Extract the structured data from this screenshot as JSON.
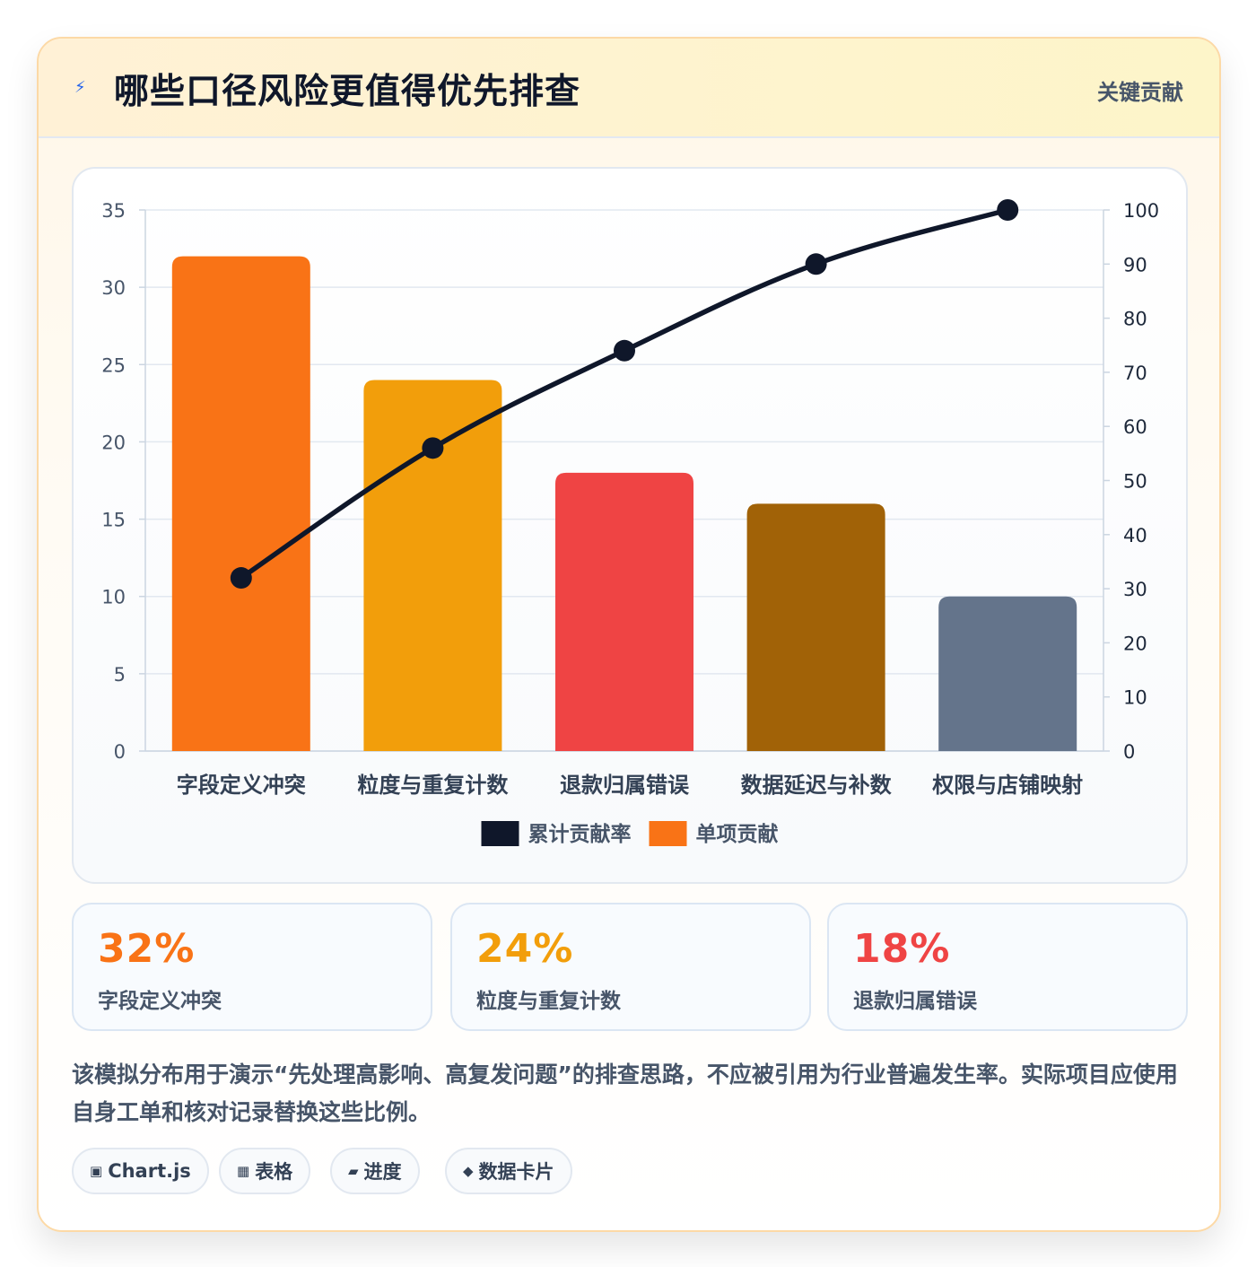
{
  "header": {
    "icon": "lightning-icon",
    "title": "哪些口径风险更值得优先排查",
    "badge": "关键贡献"
  },
  "chart_data": {
    "type": "bar",
    "categories": [
      "字段定义冲突",
      "粒度与重复计数",
      "退款归属错误",
      "数据延迟与补数",
      "权限与店铺映射"
    ],
    "series": [
      {
        "name": "单项贡献",
        "type": "bar",
        "axis": "left",
        "values": [
          32,
          24,
          18,
          16,
          10
        ],
        "colors": [
          "#f97316",
          "#f29e0b",
          "#ef4444",
          "#a16207",
          "#64748b"
        ]
      },
      {
        "name": "累计贡献率",
        "type": "line",
        "axis": "right",
        "values": [
          32,
          56,
          74,
          90,
          100
        ],
        "color": "#0f172a"
      }
    ],
    "ylim_left": [
      0,
      35
    ],
    "yticks_left": [
      "0",
      "5",
      "10",
      "15",
      "20",
      "25",
      "30",
      "35"
    ],
    "ylim_right": [
      0,
      100
    ],
    "yticks_right": [
      "0",
      "10",
      "20",
      "30",
      "40",
      "50",
      "60",
      "70",
      "80",
      "90",
      "100"
    ],
    "legend": [
      {
        "label": "累计贡献率",
        "color": "#0f172a"
      },
      {
        "label": "单项贡献",
        "color": "#f97316"
      }
    ],
    "legend_position": "bottom",
    "grid": true
  },
  "stats": [
    {
      "value": "32%",
      "label": "字段定义冲突",
      "color": "#f97316"
    },
    {
      "value": "24%",
      "label": "粒度与重复计数",
      "color": "#f29e0b"
    },
    {
      "value": "18%",
      "label": "退款归属错误",
      "color": "#ef4444"
    }
  ],
  "note": "该模拟分布用于演示“先处理高影响、高复发问题”的排查思路，不应被引用为行业普遍发生率。实际项目应使用自身工单和核对记录替换这些比例。",
  "chips": [
    {
      "icon": "▣",
      "icon_name": "chart-icon",
      "label": "Chart.js"
    },
    {
      "icon": "▦",
      "icon_name": "table-icon",
      "label": "表格"
    },
    {
      "icon": "▰",
      "icon_name": "progress-icon",
      "label": "进度"
    },
    {
      "icon": "◆",
      "icon_name": "diamond-icon",
      "label": "数据卡片"
    }
  ]
}
